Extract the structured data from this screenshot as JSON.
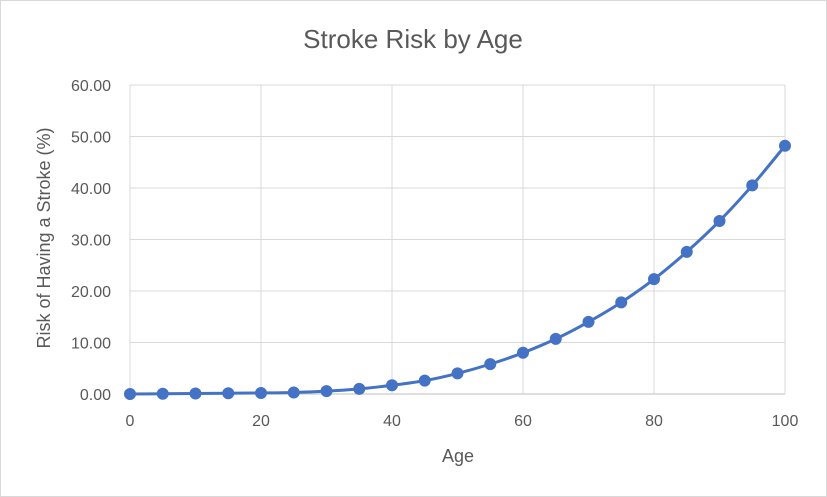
{
  "chart_data": {
    "type": "line",
    "title": "Stroke Risk by Age",
    "xlabel": "Age",
    "ylabel": "Risk of Having a Stroke (%)",
    "xlim": [
      0,
      100
    ],
    "ylim": [
      0,
      60
    ],
    "x_ticks": [
      "0",
      "20",
      "40",
      "60",
      "80",
      "100"
    ],
    "y_ticks": [
      "0.00",
      "10.00",
      "20.00",
      "30.00",
      "40.00",
      "50.00",
      "60.00"
    ],
    "grid": true,
    "legend": "none",
    "colors": {
      "series": "#4472c4",
      "grid": "#d9d9d9",
      "text": "#595959"
    },
    "series": [
      {
        "x": [
          0,
          5,
          10,
          15,
          20,
          25,
          30,
          35,
          40,
          45,
          50,
          55,
          60,
          65,
          70,
          75,
          80,
          85,
          90,
          95,
          100
        ],
        "values": [
          0.0,
          0.05,
          0.1,
          0.15,
          0.2,
          0.3,
          0.55,
          1.0,
          1.7,
          2.6,
          4.0,
          5.8,
          8.0,
          10.7,
          14.0,
          17.8,
          22.3,
          27.6,
          33.6,
          40.5,
          48.2
        ]
      }
    ]
  }
}
